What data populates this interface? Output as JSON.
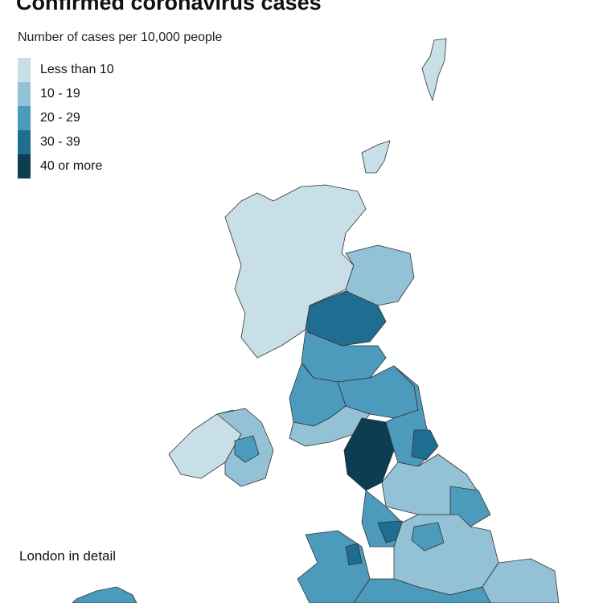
{
  "title": "Confirmed coronavirus cases",
  "subtitle": "Number of cases per 10,000 people",
  "legend": [
    {
      "label": "Less than 10",
      "color": "#c9dfe7"
    },
    {
      "label": "10 - 19",
      "color": "#93c1d5"
    },
    {
      "label": "20 - 29",
      "color": "#4c9bbd"
    },
    {
      "label": "30 - 39",
      "color": "#1f6d90"
    },
    {
      "label": "40 or more",
      "color": "#0c3d50"
    }
  ],
  "inset_label": "London in detail"
}
